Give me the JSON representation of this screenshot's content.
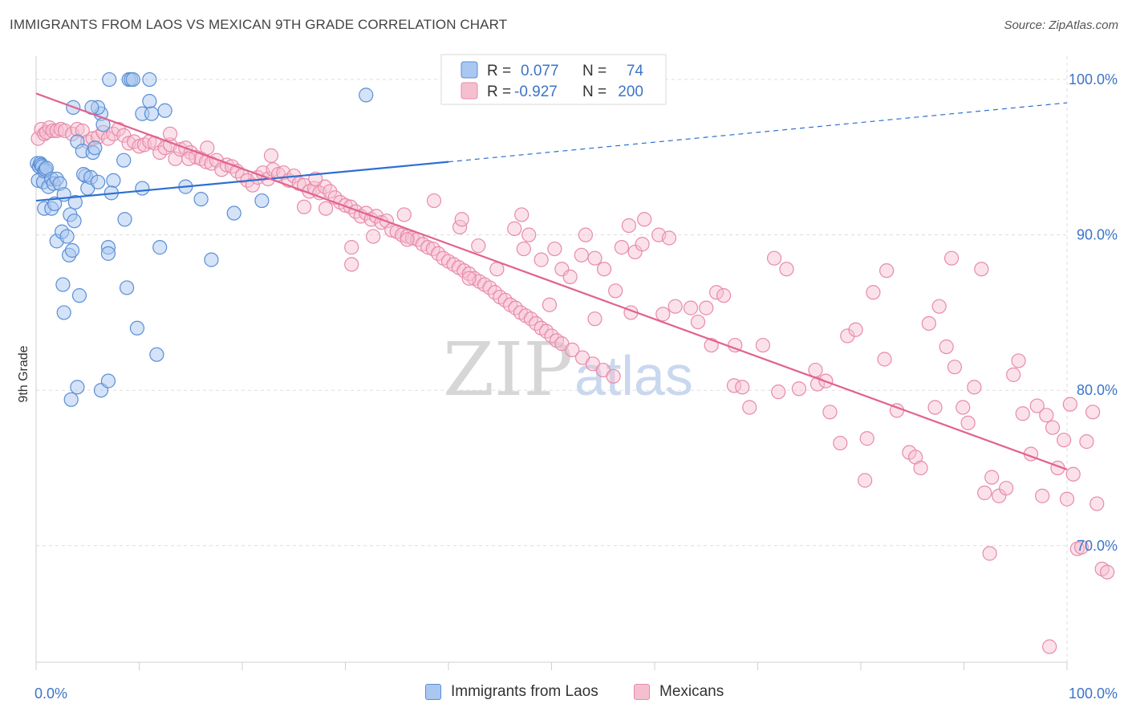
{
  "title": "IMMIGRANTS FROM LAOS VS MEXICAN 9TH GRADE CORRELATION CHART",
  "source": "Source: ZipAtlas.com",
  "legend_top": {
    "rows": [
      {
        "r_label": "R =",
        "r_value": "0.077",
        "n_label": "N =",
        "n_value": "74"
      },
      {
        "r_label": "R =",
        "r_value": "-0.927",
        "n_label": "N =",
        "n_value": "200"
      }
    ]
  },
  "legend_bottom": [
    "Immigrants from Laos",
    "Mexicans"
  ],
  "watermark": {
    "zip": "ZIP",
    "atlas": "atlas"
  },
  "colors": {
    "laos_fill": "#a9c7f0",
    "laos_stroke": "#5a8ed6",
    "laos_line": "#2f6fd1",
    "mex_fill": "#f6bfd0",
    "mex_stroke": "#e88aa9",
    "mex_line": "#e2628f",
    "tick_text": "#3b74c9",
    "grid": "#dddddd"
  },
  "chart_data": {
    "type": "scatter",
    "title": "IMMIGRANTS FROM LAOS VS MEXICAN 9TH GRADE CORRELATION CHART",
    "xlabel": "",
    "ylabel": "9th Grade",
    "xlim": [
      0,
      100
    ],
    "ylim": [
      62.5,
      101.5
    ],
    "x_tick_labels": [
      "0.0%",
      "100.0%"
    ],
    "y_ticks": [
      70,
      80,
      90,
      100
    ],
    "y_tick_labels": [
      "70.0%",
      "80.0%",
      "90.0%",
      "100.0%"
    ],
    "grid": true,
    "legend_position": "top-center",
    "series": [
      {
        "name": "Immigrants from Laos",
        "R": 0.077,
        "N": 74,
        "trend": {
          "x0": 0.0,
          "y0": 92.2,
          "x1": 40.0,
          "y1": 94.7,
          "dash_to": [
            100.0,
            98.5
          ]
        },
        "points": [
          [
            0.1,
            94.6
          ],
          [
            0.2,
            93.5
          ],
          [
            0.3,
            94.4
          ],
          [
            0.4,
            94.6
          ],
          [
            0.5,
            94.5
          ],
          [
            0.6,
            94.4
          ],
          [
            0.7,
            93.4
          ],
          [
            0.8,
            94.1
          ],
          [
            0.9,
            94.2
          ],
          [
            1.0,
            94.3
          ],
          [
            1.2,
            93.1
          ],
          [
            1.5,
            93.6
          ],
          [
            1.7,
            93.3
          ],
          [
            2.0,
            93.6
          ],
          [
            2.3,
            93.3
          ],
          [
            0.8,
            91.7
          ],
          [
            1.5,
            91.7
          ],
          [
            1.8,
            92.0
          ],
          [
            2.7,
            92.6
          ],
          [
            2.0,
            89.6
          ],
          [
            2.5,
            90.2
          ],
          [
            3.0,
            89.9
          ],
          [
            3.2,
            88.7
          ],
          [
            3.5,
            89.0
          ],
          [
            3.3,
            91.3
          ],
          [
            3.7,
            90.9
          ],
          [
            3.8,
            92.1
          ],
          [
            4.0,
            96.0
          ],
          [
            4.5,
            95.4
          ],
          [
            4.8,
            93.8
          ],
          [
            4.6,
            93.9
          ],
          [
            5.0,
            93.0
          ],
          [
            5.3,
            93.7
          ],
          [
            5.5,
            95.3
          ],
          [
            5.7,
            95.6
          ],
          [
            6.0,
            93.4
          ],
          [
            6.3,
            97.8
          ],
          [
            6.0,
            98.2
          ],
          [
            5.4,
            98.2
          ],
          [
            7.0,
            89.2
          ],
          [
            7.0,
            88.8
          ],
          [
            6.5,
            97.1
          ],
          [
            7.5,
            93.5
          ],
          [
            7.3,
            92.7
          ],
          [
            8.5,
            94.8
          ],
          [
            8.6,
            91.0
          ],
          [
            8.8,
            86.6
          ],
          [
            10.3,
            93.0
          ],
          [
            10.3,
            97.8
          ],
          [
            11.0,
            98.6
          ],
          [
            11.2,
            97.8
          ],
          [
            9.0,
            100.0
          ],
          [
            9.2,
            100.0
          ],
          [
            7.1,
            100.0
          ],
          [
            9.4,
            100.0
          ],
          [
            11.0,
            100.0
          ],
          [
            12.0,
            89.2
          ],
          [
            12.5,
            98.0
          ],
          [
            9.8,
            84.0
          ],
          [
            11.7,
            82.3
          ],
          [
            6.3,
            80.0
          ],
          [
            7.0,
            80.6
          ],
          [
            3.4,
            79.4
          ],
          [
            4.0,
            80.2
          ],
          [
            2.7,
            85.0
          ],
          [
            4.2,
            86.1
          ],
          [
            2.6,
            86.8
          ],
          [
            3.6,
            98.2
          ],
          [
            14.5,
            93.1
          ],
          [
            16.0,
            92.3
          ],
          [
            17.0,
            88.4
          ],
          [
            19.2,
            91.4
          ],
          [
            21.9,
            92.2
          ],
          [
            32.0,
            99.0
          ]
        ]
      },
      {
        "name": "Mexicans",
        "R": -0.927,
        "N": 200,
        "trend": {
          "x0": 0.0,
          "y0": 99.1,
          "x1": 100.0,
          "y1": 74.9
        },
        "points": [
          [
            0.2,
            96.2
          ],
          [
            0.5,
            96.8
          ],
          [
            0.8,
            96.5
          ],
          [
            1.0,
            96.6
          ],
          [
            1.3,
            96.9
          ],
          [
            1.6,
            96.7
          ],
          [
            2.0,
            96.7
          ],
          [
            2.4,
            96.8
          ],
          [
            2.8,
            96.7
          ],
          [
            3.5,
            96.5
          ],
          [
            4.0,
            96.8
          ],
          [
            4.5,
            96.7
          ],
          [
            5.0,
            96.0
          ],
          [
            5.5,
            96.2
          ],
          [
            6.0,
            96.3
          ],
          [
            6.5,
            96.6
          ],
          [
            7.0,
            96.2
          ],
          [
            7.5,
            96.5
          ],
          [
            8.0,
            96.8
          ],
          [
            8.5,
            96.4
          ],
          [
            9.0,
            95.9
          ],
          [
            9.5,
            96.0
          ],
          [
            10.0,
            95.7
          ],
          [
            10.5,
            95.8
          ],
          [
            11.0,
            96.0
          ],
          [
            11.5,
            95.9
          ],
          [
            12.0,
            95.3
          ],
          [
            12.5,
            95.6
          ],
          [
            13.0,
            95.8
          ],
          [
            13.5,
            94.9
          ],
          [
            14.0,
            95.5
          ],
          [
            14.5,
            95.6
          ],
          [
            15.0,
            95.3
          ],
          [
            15.5,
            95.0
          ],
          [
            16.0,
            94.9
          ],
          [
            16.5,
            94.7
          ],
          [
            17.0,
            94.6
          ],
          [
            17.5,
            94.8
          ],
          [
            18.0,
            94.2
          ],
          [
            18.5,
            94.5
          ],
          [
            19.0,
            94.4
          ],
          [
            19.5,
            94.1
          ],
          [
            20.0,
            93.8
          ],
          [
            20.5,
            93.5
          ],
          [
            21.0,
            93.2
          ],
          [
            21.5,
            93.7
          ],
          [
            22.0,
            94.0
          ],
          [
            22.5,
            93.6
          ],
          [
            23.0,
            94.2
          ],
          [
            23.5,
            93.9
          ],
          [
            24.0,
            94.0
          ],
          [
            24.5,
            93.5
          ],
          [
            25.0,
            93.8
          ],
          [
            25.5,
            93.3
          ],
          [
            26.0,
            93.2
          ],
          [
            26.5,
            92.8
          ],
          [
            27.0,
            93.0
          ],
          [
            27.5,
            92.7
          ],
          [
            28.0,
            93.1
          ],
          [
            28.5,
            92.8
          ],
          [
            29.0,
            92.4
          ],
          [
            29.5,
            92.1
          ],
          [
            30.0,
            91.9
          ],
          [
            30.5,
            91.8
          ],
          [
            31.0,
            91.5
          ],
          [
            31.5,
            91.2
          ],
          [
            32.0,
            91.4
          ],
          [
            32.5,
            91.0
          ],
          [
            33.0,
            91.2
          ],
          [
            33.5,
            90.8
          ],
          [
            34.0,
            90.9
          ],
          [
            34.5,
            90.3
          ],
          [
            35.0,
            90.2
          ],
          [
            35.5,
            90.0
          ],
          [
            36.0,
            89.9
          ],
          [
            36.5,
            89.8
          ],
          [
            37.0,
            89.7
          ],
          [
            37.5,
            89.4
          ],
          [
            38.0,
            89.2
          ],
          [
            38.5,
            89.1
          ],
          [
            39.0,
            88.8
          ],
          [
            39.5,
            88.5
          ],
          [
            40.0,
            88.3
          ],
          [
            40.5,
            88.1
          ],
          [
            41.0,
            87.9
          ],
          [
            41.5,
            87.7
          ],
          [
            42.0,
            87.5
          ],
          [
            42.5,
            87.2
          ],
          [
            43.0,
            87.0
          ],
          [
            43.5,
            86.8
          ],
          [
            44.0,
            86.6
          ],
          [
            44.5,
            86.3
          ],
          [
            45.0,
            86.0
          ],
          [
            45.5,
            85.8
          ],
          [
            46.0,
            85.5
          ],
          [
            46.5,
            85.3
          ],
          [
            47.0,
            85.0
          ],
          [
            47.5,
            84.8
          ],
          [
            48.0,
            84.6
          ],
          [
            48.5,
            84.3
          ],
          [
            49.0,
            84.0
          ],
          [
            49.5,
            83.8
          ],
          [
            50.0,
            83.5
          ],
          [
            50.5,
            83.2
          ],
          [
            51.0,
            83.0
          ],
          [
            52.0,
            82.6
          ],
          [
            53.0,
            82.1
          ],
          [
            54.0,
            81.7
          ],
          [
            55.0,
            81.3
          ],
          [
            56.0,
            80.9
          ],
          [
            13.0,
            96.5
          ],
          [
            16.6,
            95.6
          ],
          [
            22.8,
            95.1
          ],
          [
            14.8,
            94.9
          ],
          [
            27.1,
            93.6
          ],
          [
            26.0,
            91.8
          ],
          [
            28.1,
            91.7
          ],
          [
            30.6,
            89.2
          ],
          [
            30.6,
            88.1
          ],
          [
            32.7,
            89.9
          ],
          [
            35.7,
            91.3
          ],
          [
            36.0,
            89.7
          ],
          [
            38.6,
            92.2
          ],
          [
            41.1,
            90.5
          ],
          [
            42.0,
            87.2
          ],
          [
            42.9,
            89.3
          ],
          [
            44.7,
            87.8
          ],
          [
            46.4,
            90.4
          ],
          [
            47.3,
            89.1
          ],
          [
            47.8,
            90.0
          ],
          [
            49.0,
            88.4
          ],
          [
            50.3,
            89.1
          ],
          [
            51.0,
            87.8
          ],
          [
            51.8,
            87.3
          ],
          [
            52.9,
            88.7
          ],
          [
            53.3,
            90.0
          ],
          [
            54.2,
            88.5
          ],
          [
            55.1,
            87.8
          ],
          [
            56.2,
            86.4
          ],
          [
            56.8,
            89.2
          ],
          [
            57.5,
            90.6
          ],
          [
            57.7,
            85.0
          ],
          [
            58.1,
            88.9
          ],
          [
            58.8,
            89.4
          ],
          [
            59.0,
            91.0
          ],
          [
            60.4,
            90.0
          ],
          [
            61.4,
            89.8
          ],
          [
            62.0,
            85.4
          ],
          [
            63.5,
            85.3
          ],
          [
            64.2,
            84.4
          ],
          [
            65.0,
            85.3
          ],
          [
            65.5,
            82.9
          ],
          [
            66.0,
            86.3
          ],
          [
            66.7,
            86.1
          ],
          [
            67.7,
            80.3
          ],
          [
            68.5,
            80.2
          ],
          [
            69.2,
            78.9
          ],
          [
            70.5,
            82.9
          ],
          [
            71.6,
            88.5
          ],
          [
            72.0,
            79.9
          ],
          [
            72.8,
            87.8
          ],
          [
            74.0,
            80.1
          ],
          [
            75.6,
            81.3
          ],
          [
            75.8,
            80.4
          ],
          [
            76.6,
            80.6
          ],
          [
            77.0,
            78.6
          ],
          [
            78.7,
            83.5
          ],
          [
            78.0,
            76.6
          ],
          [
            79.5,
            83.9
          ],
          [
            80.4,
            74.2
          ],
          [
            80.6,
            76.9
          ],
          [
            81.2,
            86.3
          ],
          [
            82.3,
            82.0
          ],
          [
            82.5,
            87.7
          ],
          [
            83.5,
            78.7
          ],
          [
            84.7,
            76.0
          ],
          [
            85.3,
            75.7
          ],
          [
            85.8,
            75.0
          ],
          [
            86.6,
            84.3
          ],
          [
            87.2,
            78.9
          ],
          [
            87.6,
            85.4
          ],
          [
            88.3,
            82.8
          ],
          [
            88.8,
            88.5
          ],
          [
            89.1,
            81.5
          ],
          [
            89.9,
            78.9
          ],
          [
            90.4,
            77.9
          ],
          [
            91.0,
            80.2
          ],
          [
            91.7,
            87.8
          ],
          [
            92.0,
            73.4
          ],
          [
            92.7,
            74.4
          ],
          [
            93.4,
            73.2
          ],
          [
            94.1,
            73.7
          ],
          [
            94.8,
            81.0
          ],
          [
            95.3,
            81.9
          ],
          [
            95.7,
            78.5
          ],
          [
            96.5,
            75.9
          ],
          [
            97.1,
            79.0
          ],
          [
            97.6,
            73.2
          ],
          [
            98.0,
            78.4
          ],
          [
            98.6,
            77.6
          ],
          [
            99.1,
            75.0
          ],
          [
            99.7,
            76.8
          ],
          [
            100.0,
            73.0
          ],
          [
            100.3,
            79.1
          ],
          [
            100.6,
            74.6
          ],
          [
            101.0,
            69.8
          ],
          [
            101.4,
            69.9
          ],
          [
            101.9,
            76.7
          ],
          [
            102.5,
            78.6
          ],
          [
            102.9,
            72.7
          ],
          [
            103.4,
            68.5
          ],
          [
            103.9,
            68.3
          ],
          [
            92.5,
            69.5
          ],
          [
            98.3,
            63.5
          ],
          [
            49.8,
            85.5
          ],
          [
            54.2,
            84.6
          ],
          [
            47.1,
            91.3
          ],
          [
            41.3,
            91.0
          ],
          [
            60.8,
            84.9
          ],
          [
            67.8,
            82.9
          ]
        ]
      }
    ]
  }
}
